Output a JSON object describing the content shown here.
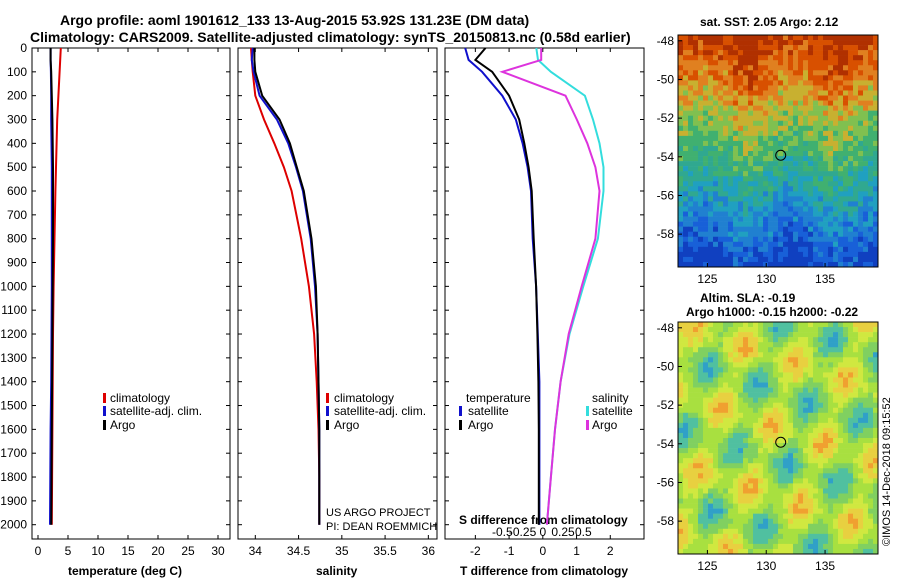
{
  "header": {
    "line1": "Argo profile: aoml 1901612_133 13-Aug-2015 53.92S 131.23E (DM data)",
    "line2": "Climatology: CARS2009. Satellite-adjusted climatology: synTS_20150813.nc (0.58d earlier)"
  },
  "colors": {
    "climatology": "#dd0000",
    "satellite": "#1010cc",
    "argo": "#000000",
    "satellite_sal": "#33dddd",
    "argo_sal": "#dd33dd"
  },
  "credits": {
    "project": "US ARGO PROJECT",
    "pi": "PI: DEAN ROEMMICH",
    "watermark": "©IMOS 14-Dec-2018 09:15:52"
  },
  "chart_data": [
    {
      "type": "line",
      "panel": "temperature",
      "xlabel": "temperature (deg C)",
      "ylabel": "",
      "xlim": [
        -1,
        32
      ],
      "ylim": [
        2060,
        0
      ],
      "xticks": [
        0,
        5,
        10,
        15,
        20,
        25,
        30
      ],
      "yticks": [
        0,
        100,
        200,
        300,
        400,
        500,
        600,
        700,
        800,
        900,
        1000,
        1100,
        1200,
        1300,
        1400,
        1500,
        1600,
        1700,
        1800,
        1900,
        2000
      ],
      "legend": [
        "climatology",
        "satellite-adj. clim.",
        "Argo"
      ],
      "series": [
        {
          "name": "climatology",
          "color": "climatology",
          "x": [
            3.8,
            3.7,
            3.6,
            3.4,
            3.2,
            3.1,
            3.0,
            2.9,
            2.75,
            2.6,
            2.5,
            2.45,
            2.4,
            2.35,
            2.3
          ],
          "y": [
            0,
            50,
            100,
            200,
            300,
            400,
            500,
            600,
            800,
            1000,
            1200,
            1400,
            1600,
            1800,
            2000
          ]
        },
        {
          "name": "satellite-adj. clim.",
          "color": "satellite",
          "x": [
            2.1,
            2.1,
            2.15,
            2.2,
            2.2,
            2.25,
            2.3,
            2.3,
            2.3,
            2.3,
            2.25,
            2.2,
            2.1,
            2.05,
            2.0
          ],
          "y": [
            0,
            50,
            100,
            200,
            300,
            400,
            500,
            600,
            800,
            1000,
            1200,
            1400,
            1600,
            1800,
            2000
          ]
        },
        {
          "name": "Argo",
          "color": "argo",
          "x": [
            2.1,
            2.1,
            2.2,
            2.3,
            2.4,
            2.45,
            2.5,
            2.5,
            2.5,
            2.45,
            2.4,
            2.35,
            2.3,
            2.25,
            2.2
          ],
          "y": [
            0,
            50,
            100,
            200,
            300,
            400,
            500,
            600,
            800,
            1000,
            1200,
            1400,
            1600,
            1800,
            2000
          ]
        }
      ]
    },
    {
      "type": "line",
      "panel": "salinity",
      "xlabel": "salinity",
      "ylabel": "",
      "xlim": [
        33.8,
        36.1
      ],
      "ylim": [
        2060,
        0
      ],
      "xticks": [
        34,
        34.5,
        35,
        35.5,
        36
      ],
      "legend": [
        "climatology",
        "satellite-adj. clim.",
        "Argo"
      ],
      "series": [
        {
          "name": "climatology",
          "color": "climatology",
          "x": [
            33.95,
            33.96,
            33.97,
            34.0,
            34.1,
            34.22,
            34.33,
            34.42,
            34.53,
            34.62,
            34.68,
            34.71,
            34.73,
            34.74,
            34.74
          ],
          "y": [
            0,
            50,
            100,
            200,
            300,
            400,
            500,
            600,
            800,
            1000,
            1200,
            1400,
            1600,
            1800,
            2000
          ]
        },
        {
          "name": "satellite-adj. clim.",
          "color": "satellite",
          "x": [
            33.97,
            33.96,
            33.98,
            34.05,
            34.25,
            34.38,
            34.47,
            34.55,
            34.64,
            34.69,
            34.72,
            34.73,
            34.74,
            34.74,
            34.74
          ],
          "y": [
            0,
            50,
            100,
            200,
            300,
            400,
            500,
            600,
            800,
            1000,
            1200,
            1400,
            1600,
            1800,
            2000
          ]
        },
        {
          "name": "Argo",
          "color": "argo",
          "x": [
            33.99,
            33.99,
            34.0,
            34.08,
            34.28,
            34.4,
            34.48,
            34.56,
            34.65,
            34.7,
            34.72,
            34.73,
            34.74,
            34.74,
            34.74
          ],
          "y": [
            0,
            50,
            100,
            200,
            300,
            400,
            500,
            600,
            800,
            1000,
            1200,
            1400,
            1600,
            1800,
            2000
          ]
        }
      ]
    },
    {
      "type": "line",
      "panel": "difference",
      "xlabel": "T difference from climatology",
      "xlabel2": "S difference from climatology",
      "xlim": [
        -2.9,
        3.0
      ],
      "ylim": [
        2060,
        0
      ],
      "xticks": [
        -2,
        -1,
        0,
        1,
        2
      ],
      "xticks_S": [
        -0.5,
        -0.25,
        0,
        0.25,
        0.5
      ],
      "xticks_S_labels": [
        "-0.5",
        "-0.25",
        "0",
        "0.25",
        "0.5"
      ],
      "legend_left": {
        "title": "temperature",
        "items": [
          "satellite",
          "Argo"
        ]
      },
      "legend_right": {
        "title": "salinity",
        "items": [
          "satellite",
          "Argo"
        ]
      },
      "series": [
        {
          "name": "temperature satellite",
          "color": "satellite",
          "x": [
            -2.3,
            -2.2,
            -1.8,
            -1.2,
            -0.8,
            -0.6,
            -0.45,
            -0.35,
            -0.3,
            -0.2,
            -0.15,
            -0.1,
            -0.1,
            -0.1,
            -0.1
          ],
          "y": [
            0,
            50,
            100,
            200,
            300,
            400,
            500,
            600,
            800,
            1000,
            1200,
            1400,
            1600,
            1800,
            2000
          ]
        },
        {
          "name": "temperature Argo",
          "color": "argo",
          "x": [
            -1.7,
            -2.0,
            -1.5,
            -1.0,
            -0.7,
            -0.55,
            -0.42,
            -0.33,
            -0.27,
            -0.2,
            -0.16,
            -0.13,
            -0.12,
            -0.12,
            -0.12
          ],
          "y": [
            0,
            50,
            100,
            200,
            300,
            400,
            500,
            600,
            800,
            1000,
            1200,
            1400,
            1600,
            1800,
            2000
          ]
        },
        {
          "name": "salinity satellite",
          "color": "satellite_sal",
          "x": [
            -0.08,
            -0.06,
            0.1,
            0.52,
            0.62,
            0.7,
            0.75,
            0.75,
            0.68,
            0.5,
            0.33,
            0.22,
            0.15,
            0.1,
            0.05
          ],
          "y": [
            0,
            50,
            100,
            200,
            300,
            400,
            500,
            600,
            800,
            1000,
            1200,
            1400,
            1600,
            1800,
            2000
          ]
        },
        {
          "name": "salinity Argo",
          "color": "argo_sal",
          "x": [
            -0.02,
            -0.02,
            -0.5,
            0.28,
            0.42,
            0.55,
            0.65,
            0.7,
            0.65,
            0.48,
            0.32,
            0.22,
            0.15,
            0.1,
            0.05
          ],
          "y": [
            0,
            50,
            100,
            200,
            300,
            400,
            500,
            600,
            800,
            1000,
            1200,
            1400,
            1600,
            1800,
            2000
          ]
        }
      ]
    },
    {
      "type": "heatmap",
      "panel": "sst_map",
      "title": "sat. SST: 2.05 Argo: 2.12",
      "xlim": [
        122.5,
        139.5
      ],
      "ylim": [
        -59.7,
        -47.7
      ],
      "xticks": [
        125,
        130,
        135
      ],
      "yticks": [
        -48,
        -50,
        -52,
        -54,
        -56,
        -58
      ],
      "marker": {
        "lon": 131.23,
        "lat": -53.92
      }
    },
    {
      "type": "heatmap",
      "panel": "sla_map",
      "title": "Altim. SLA: -0.19",
      "subtitle": "Argo h1000: -0.15 h2000: -0.22",
      "xlim": [
        122.5,
        139.5
      ],
      "ylim": [
        -59.7,
        -47.7
      ],
      "xticks": [
        125,
        130,
        135
      ],
      "yticks": [
        -48,
        -50,
        -52,
        -54,
        -56,
        -58
      ],
      "marker": {
        "lon": 131.23,
        "lat": -53.92
      }
    }
  ]
}
